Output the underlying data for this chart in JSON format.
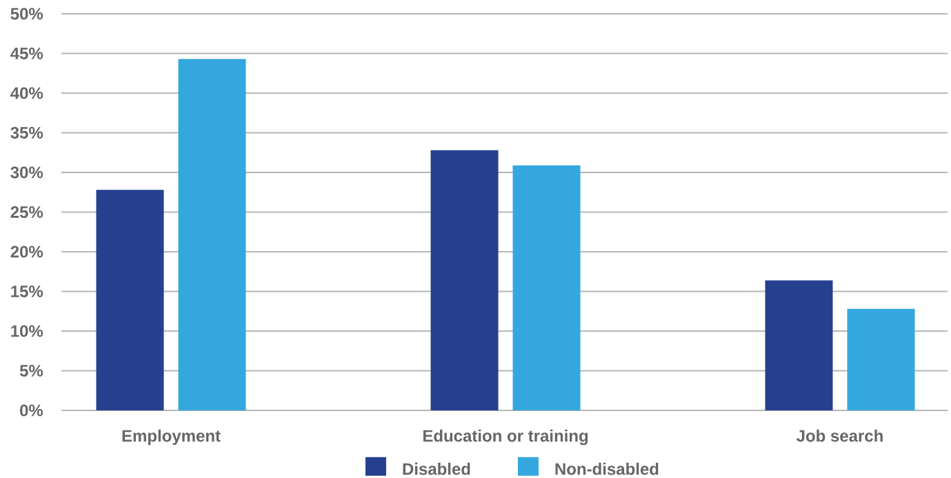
{
  "chart_data": {
    "type": "bar",
    "categories": [
      "Employment",
      "Education or training",
      "Job search"
    ],
    "series": [
      {
        "name": "Disabled",
        "color": "#25408f",
        "values": [
          27.8,
          32.8,
          16.4
        ]
      },
      {
        "name": "Non-disabled",
        "color": "#34a8de",
        "values": [
          44.3,
          30.9,
          12.8
        ]
      }
    ],
    "ylim": [
      0,
      50
    ],
    "yticks": [
      {
        "value": 0,
        "label": "0%"
      },
      {
        "value": 5,
        "label": "5%"
      },
      {
        "value": 10,
        "label": "10%"
      },
      {
        "value": 15,
        "label": "15%"
      },
      {
        "value": 20,
        "label": "20%"
      },
      {
        "value": 25,
        "label": "25%"
      },
      {
        "value": 30,
        "label": "30%"
      },
      {
        "value": 35,
        "label": "35%"
      },
      {
        "value": 40,
        "label": "40%"
      },
      {
        "value": 45,
        "label": "45%"
      },
      {
        "value": 50,
        "label": "50%"
      }
    ],
    "grid": "y",
    "legend": "bottom"
  }
}
